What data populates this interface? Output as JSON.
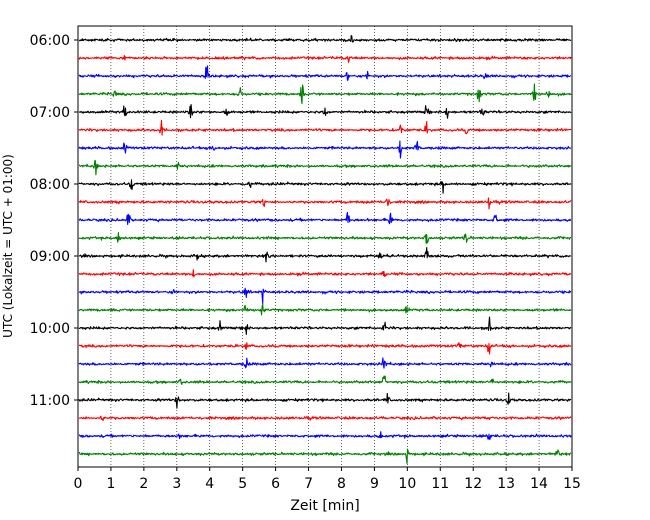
{
  "chart_data": {
    "type": "line",
    "title": "",
    "xlabel": "Zeit  [min]",
    "ylabel": "UTC (Lokalzeit = UTC + 01:00)",
    "xlim": [
      0,
      15
    ],
    "x_ticks": [
      "0",
      "1",
      "2",
      "3",
      "4",
      "5",
      "6",
      "7",
      "8",
      "9",
      "10",
      "11",
      "12",
      "13",
      "14",
      "15"
    ],
    "y_ticks": [
      "06:00",
      "07:00",
      "08:00",
      "09:00",
      "10:00",
      "11:00"
    ],
    "grid": "vertical dotted",
    "trace_colors": [
      "#000000",
      "#ff0000",
      "#0000ff",
      "#008000"
    ],
    "traces": [
      {
        "start": "06:00",
        "events": [
          [
            8.3,
            0.5
          ]
        ]
      },
      {
        "start": "06:15",
        "events": [
          [
            8.2,
            0.5
          ],
          [
            1.4,
            0.3
          ]
        ]
      },
      {
        "start": "06:30",
        "events": [
          [
            3.9,
            1.0
          ],
          [
            8.2,
            0.7
          ],
          [
            8.8,
            0.5
          ],
          [
            12.4,
            0.5
          ]
        ]
      },
      {
        "start": "06:45",
        "events": [
          [
            4.9,
            0.9
          ],
          [
            6.8,
            1.0
          ],
          [
            12.2,
            0.9
          ],
          [
            13.9,
            0.9
          ],
          [
            14.3,
            1.0
          ],
          [
            1.1,
            0.5
          ]
        ]
      },
      {
        "start": "07:00",
        "events": [
          [
            1.4,
            0.9
          ],
          [
            3.4,
            0.9
          ],
          [
            4.5,
            0.5
          ],
          [
            7.5,
            0.9
          ],
          [
            10.6,
            1.0
          ],
          [
            11.2,
            1.0
          ],
          [
            12.3,
            0.6
          ]
        ]
      },
      {
        "start": "07:15",
        "events": [
          [
            2.5,
            0.9
          ],
          [
            9.8,
            0.8
          ],
          [
            10.6,
            0.7
          ],
          [
            11.8,
            0.5
          ]
        ]
      },
      {
        "start": "07:30",
        "events": [
          [
            1.4,
            0.8
          ],
          [
            9.8,
            1.0
          ],
          [
            10.3,
            1.0
          ],
          [
            4.1,
            0.5
          ]
        ]
      },
      {
        "start": "07:45",
        "events": [
          [
            0.5,
            1.0
          ],
          [
            3.0,
            0.4
          ]
        ]
      },
      {
        "start": "08:00",
        "events": [
          [
            1.6,
            0.8
          ],
          [
            11.1,
            0.8
          ],
          [
            5.2,
            0.4
          ]
        ]
      },
      {
        "start": "08:15",
        "events": [
          [
            5.6,
            1.0
          ],
          [
            9.4,
            0.8
          ],
          [
            12.5,
            0.8
          ]
        ]
      },
      {
        "start": "08:30",
        "events": [
          [
            1.5,
            1.0
          ],
          [
            8.2,
            1.0
          ],
          [
            9.5,
            1.0
          ],
          [
            12.7,
            1.0
          ]
        ]
      },
      {
        "start": "08:45",
        "events": [
          [
            1.2,
            0.9
          ],
          [
            10.6,
            1.0
          ],
          [
            11.8,
            0.8
          ]
        ]
      },
      {
        "start": "09:00",
        "events": [
          [
            9.2,
            0.9
          ],
          [
            10.6,
            1.0
          ],
          [
            3.6,
            0.5
          ],
          [
            5.7,
            0.5
          ]
        ]
      },
      {
        "start": "09:15",
        "events": [
          [
            3.5,
            0.7
          ],
          [
            9.3,
            0.4
          ]
        ]
      },
      {
        "start": "09:30",
        "events": [
          [
            5.1,
            1.0
          ],
          [
            5.6,
            1.0
          ],
          [
            2.9,
            0.4
          ]
        ]
      },
      {
        "start": "09:45",
        "events": [
          [
            5.1,
            1.0
          ],
          [
            5.6,
            0.8
          ],
          [
            10.0,
            0.5
          ]
        ]
      },
      {
        "start": "10:00",
        "events": [
          [
            5.1,
            1.0
          ],
          [
            9.3,
            1.0
          ],
          [
            12.5,
            1.0
          ],
          [
            4.3,
            0.5
          ]
        ]
      },
      {
        "start": "10:15",
        "events": [
          [
            12.5,
            1.0
          ],
          [
            5.1,
            0.6
          ],
          [
            11.6,
            0.4
          ]
        ]
      },
      {
        "start": "10:30",
        "events": [
          [
            9.3,
            1.0
          ],
          [
            5.1,
            0.7
          ],
          [
            12.6,
            0.5
          ]
        ]
      },
      {
        "start": "10:45",
        "events": [
          [
            9.3,
            1.0
          ],
          [
            12.6,
            0.6
          ],
          [
            3.1,
            0.4
          ]
        ]
      },
      {
        "start": "11:00",
        "events": [
          [
            3.0,
            0.8
          ],
          [
            13.1,
            0.8
          ],
          [
            9.4,
            0.6
          ]
        ]
      },
      {
        "start": "11:15",
        "events": [
          [
            0.7,
            0.4
          ],
          [
            12.5,
            0.4
          ]
        ]
      },
      {
        "start": "11:30",
        "events": [
          [
            12.5,
            0.8
          ],
          [
            3.1,
            0.3
          ],
          [
            9.2,
            0.4
          ]
        ]
      },
      {
        "start": "11:45",
        "events": [
          [
            10.0,
            0.9
          ],
          [
            14.6,
            0.8
          ]
        ]
      }
    ]
  }
}
